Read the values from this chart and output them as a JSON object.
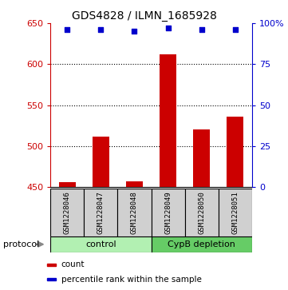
{
  "title": "GDS4828 / ILMN_1685928",
  "samples": [
    "GSM1228046",
    "GSM1228047",
    "GSM1228048",
    "GSM1228049",
    "GSM1228050",
    "GSM1228051"
  ],
  "counts": [
    456,
    512,
    457,
    612,
    520,
    536
  ],
  "percentiles": [
    96,
    96,
    95,
    97,
    96,
    96
  ],
  "ylim_left": [
    450,
    650
  ],
  "ylim_right": [
    0,
    100
  ],
  "yticks_left": [
    450,
    500,
    550,
    600,
    650
  ],
  "yticks_right": [
    0,
    25,
    50,
    75,
    100
  ],
  "ytick_labels_right": [
    "0",
    "25",
    "50",
    "75",
    "100%"
  ],
  "grid_vals": [
    500,
    550,
    600
  ],
  "bar_color": "#cc0000",
  "scatter_color": "#0000cc",
  "protocol_groups": [
    {
      "label": "control",
      "indices": [
        0,
        1,
        2
      ],
      "color": "#b2f0b2"
    },
    {
      "label": "CypB depletion",
      "indices": [
        3,
        4,
        5
      ],
      "color": "#66cc66"
    }
  ],
  "protocol_label": "protocol",
  "legend_items": [
    {
      "color": "#cc0000",
      "label": "count"
    },
    {
      "color": "#0000cc",
      "label": "percentile rank within the sample"
    }
  ],
  "bar_width": 0.5,
  "sample_box_color": "#d0d0d0",
  "left_axis_color": "#cc0000",
  "right_axis_color": "#0000cc",
  "bg_color": "#ffffff"
}
